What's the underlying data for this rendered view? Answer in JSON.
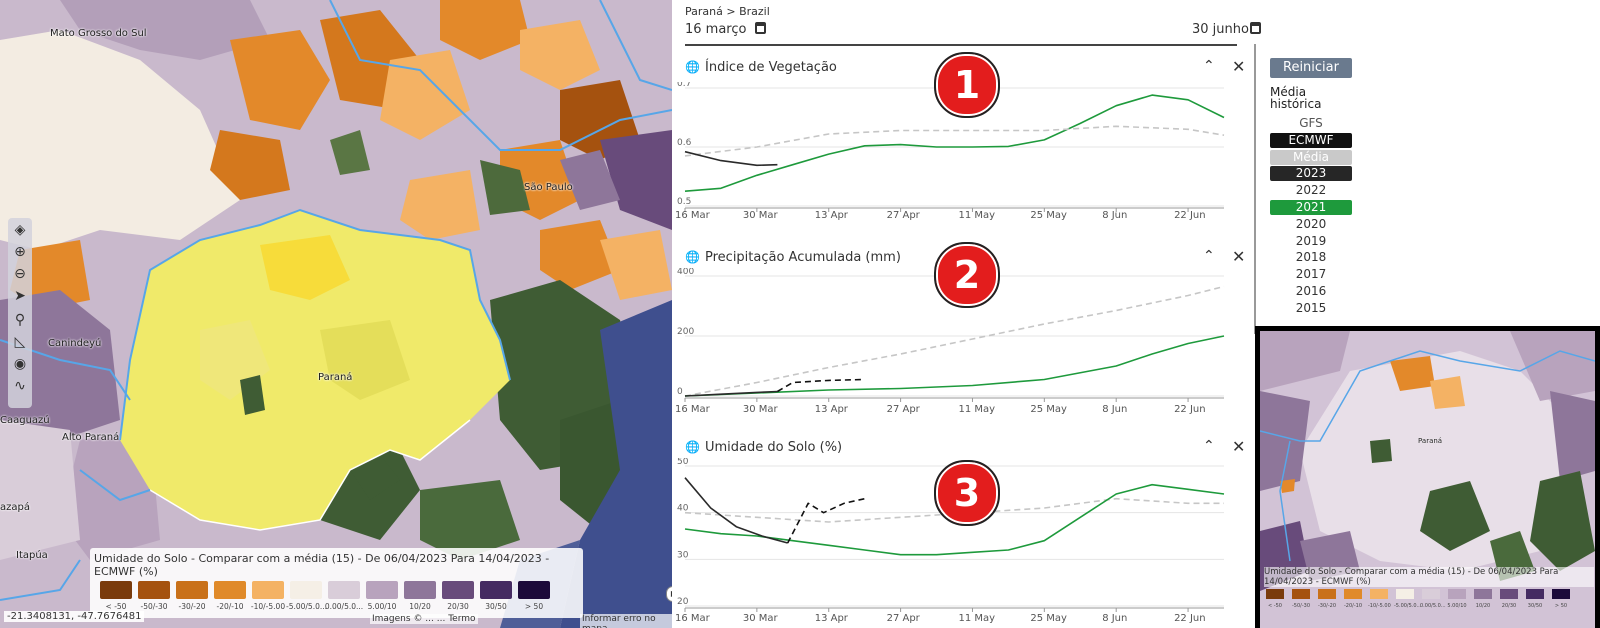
{
  "map": {
    "labels": [
      "Mato Grosso do Sul",
      "São Paulo",
      "Canindeyú",
      "Paraná",
      "Alto Paraná",
      "Caaguazú",
      "Itapúa",
      "azapá"
    ],
    "coordinates": "-21.3408131, -47.7676481",
    "attribution": "Imagens © ... ... Termo",
    "report_error": "Informar erro no mapa",
    "tools": [
      "layers-icon",
      "zoom-in-icon",
      "zoom-out-icon",
      "navigate-icon",
      "search-icon",
      "measure-icon",
      "location-icon",
      "draw-icon"
    ]
  },
  "legend": {
    "title": "Umidade do Solo - Comparar com a média (15) - De 06/04/2023 Para 14/04/2023 - ECMWF (%)",
    "items": [
      {
        "label": "< -50",
        "color": "#7a3b0c"
      },
      {
        "label": "-50/-30",
        "color": "#a5520f"
      },
      {
        "label": "-30/-20",
        "color": "#c9711a"
      },
      {
        "label": "-20/-10",
        "color": "#e08a2a"
      },
      {
        "label": "-10/-5.00",
        "color": "#f4b264"
      },
      {
        "label": "-5.00/5.0...",
        "color": "#f5efe6"
      },
      {
        "label": "0.00/5.0...",
        "color": "#d9cdd9"
      },
      {
        "label": "5.00/10",
        "color": "#b8a3bd"
      },
      {
        "label": "10/20",
        "color": "#8e769a"
      },
      {
        "label": "20/30",
        "color": "#684b7b"
      },
      {
        "label": "30/50",
        "color": "#452b62"
      },
      {
        "label": "> 50",
        "color": "#1c0a3a"
      }
    ]
  },
  "header": {
    "breadcrumb": "Paraná > Brazil",
    "start_date": "16 março",
    "end_date": "30 junho"
  },
  "charts": [
    {
      "title": "Índice de Vegetação",
      "badge": "1"
    },
    {
      "title": "Precipitação Acumulada (mm)",
      "badge": "2"
    },
    {
      "title": "Umidade do Solo (%)",
      "badge": "3"
    }
  ],
  "chart_data": [
    {
      "type": "line",
      "title": "Índice de Vegetação",
      "categories": [
        "16 Mar",
        "30 Mar",
        "13 Apr",
        "27 Apr",
        "11 May",
        "25 May",
        "8 Jun",
        "22 Jun"
      ],
      "yticks": [
        "0.7",
        "0.6",
        "0.5"
      ],
      "ylim": [
        0.5,
        0.7
      ],
      "series": [
        {
          "name": "2021",
          "color": "#1e9a3c",
          "style": "solid",
          "x": [
            0,
            7,
            14,
            21,
            28,
            35,
            42,
            49,
            56,
            63,
            70,
            77,
            84,
            91,
            98,
            105
          ],
          "y": [
            0.525,
            0.53,
            0.552,
            0.57,
            0.588,
            0.602,
            0.604,
            0.6,
            0.6,
            0.601,
            0.612,
            0.64,
            0.67,
            0.688,
            0.68,
            0.65
          ]
        },
        {
          "name": "Média histórica",
          "color": "#c6c6c6",
          "style": "dashed",
          "x": [
            0,
            14,
            28,
            42,
            56,
            70,
            84,
            98,
            105
          ],
          "y": [
            0.585,
            0.6,
            0.622,
            0.628,
            0.628,
            0.628,
            0.635,
            0.63,
            0.62
          ]
        },
        {
          "name": "2023",
          "color": "#2a2a2a",
          "style": "solid",
          "x": [
            0,
            7,
            14,
            18
          ],
          "y": [
            0.592,
            0.577,
            0.569,
            0.57
          ]
        }
      ]
    },
    {
      "type": "line",
      "title": "Precipitação Acumulada (mm)",
      "categories": [
        "16 Mar",
        "30 Mar",
        "13 Apr",
        "27 Apr",
        "11 May",
        "25 May",
        "8 Jun",
        "22 Jun"
      ],
      "yticks": [
        "400",
        "200",
        "0"
      ],
      "ylim": [
        0,
        400
      ],
      "series": [
        {
          "name": "Média histórica",
          "color": "#c6c6c6",
          "style": "dashed",
          "x": [
            0,
            14,
            28,
            42,
            56,
            70,
            84,
            98,
            105
          ],
          "y": [
            0,
            45,
            95,
            140,
            190,
            240,
            285,
            335,
            365
          ]
        },
        {
          "name": "2021",
          "color": "#1e9a3c",
          "style": "solid",
          "x": [
            0,
            14,
            28,
            42,
            56,
            70,
            84,
            91,
            98,
            105
          ],
          "y": [
            0,
            10,
            20,
            25,
            35,
            55,
            100,
            140,
            175,
            200
          ]
        },
        {
          "name": "2023",
          "color": "#2a2a2a",
          "style": "solid",
          "x": [
            0,
            7,
            14,
            18
          ],
          "y": [
            0,
            6,
            12,
            15
          ]
        },
        {
          "name": "ECMWF",
          "color": "#111111",
          "style": "dashed",
          "x": [
            18,
            21,
            28,
            35
          ],
          "y": [
            15,
            45,
            52,
            55
          ]
        }
      ]
    },
    {
      "type": "line",
      "title": "Umidade do Solo (%)",
      "categories": [
        "16 Mar",
        "30 Mar",
        "13 Apr",
        "27 Apr",
        "11 May",
        "25 May",
        "8 Jun",
        "22 Jun"
      ],
      "yticks": [
        "50",
        "40",
        "30",
        "20"
      ],
      "ylim": [
        20,
        50
      ],
      "series": [
        {
          "name": "Média histórica",
          "color": "#c6c6c6",
          "style": "dashed",
          "x": [
            0,
            14,
            28,
            42,
            56,
            70,
            84,
            98,
            105
          ],
          "y": [
            40,
            39,
            38,
            39,
            40,
            41,
            43,
            42,
            42
          ]
        },
        {
          "name": "2021",
          "color": "#1e9a3c",
          "style": "solid",
          "x": [
            0,
            7,
            14,
            21,
            28,
            35,
            42,
            49,
            56,
            63,
            70,
            77,
            84,
            91,
            98,
            105
          ],
          "y": [
            36.5,
            35.5,
            35,
            34,
            33,
            32,
            31,
            31,
            31.5,
            32,
            34,
            39,
            44,
            46,
            45,
            44
          ]
        },
        {
          "name": "2023",
          "color": "#2a2a2a",
          "style": "solid",
          "x": [
            0,
            5,
            10,
            15,
            20
          ],
          "y": [
            47.5,
            41,
            37,
            35,
            33.5
          ]
        },
        {
          "name": "ECMWF",
          "color": "#111111",
          "style": "dashed",
          "x": [
            20,
            24,
            27,
            31,
            35
          ],
          "y": [
            33.5,
            42,
            40,
            42,
            43
          ]
        }
      ]
    }
  ],
  "sidebar": {
    "reset_label": "Reiniciar",
    "historic_label": "Média histórica",
    "options": [
      {
        "label": "GFS",
        "bg": "",
        "fg": "#555555"
      },
      {
        "label": "ECMWF",
        "bg": "#111111",
        "fg": "#ffffff"
      },
      {
        "label": "Média",
        "bg": "#c9c9c9",
        "fg": "#ffffff"
      },
      {
        "label": "2023",
        "bg": "#262626",
        "fg": "#ffffff"
      },
      {
        "label": "2022",
        "bg": "",
        "fg": "#333333"
      },
      {
        "label": "2021",
        "bg": "#1e9a3c",
        "fg": "#ffffff"
      },
      {
        "label": "2020",
        "bg": "",
        "fg": "#333333"
      },
      {
        "label": "2019",
        "bg": "",
        "fg": "#333333"
      },
      {
        "label": "2018",
        "bg": "",
        "fg": "#333333"
      },
      {
        "label": "2017",
        "bg": "",
        "fg": "#333333"
      },
      {
        "label": "2016",
        "bg": "",
        "fg": "#333333"
      },
      {
        "label": "2015",
        "bg": "",
        "fg": "#333333"
      }
    ]
  },
  "inset": {
    "label": "Paraná",
    "legend_title": "Umidade do Solo - Comparar com a média (15) - De 06/04/2023 Para 14/04/2023 - ECMWF (%)",
    "legend_labels": [
      "< -50",
      "-50/-30",
      "-30/-20",
      "-20/-10",
      "-10/-5.00",
      "-5.00/5.0...",
      "0.00/5.0...",
      "5.00/10",
      "10/20",
      "20/30",
      "30/50",
      "> 50"
    ]
  }
}
